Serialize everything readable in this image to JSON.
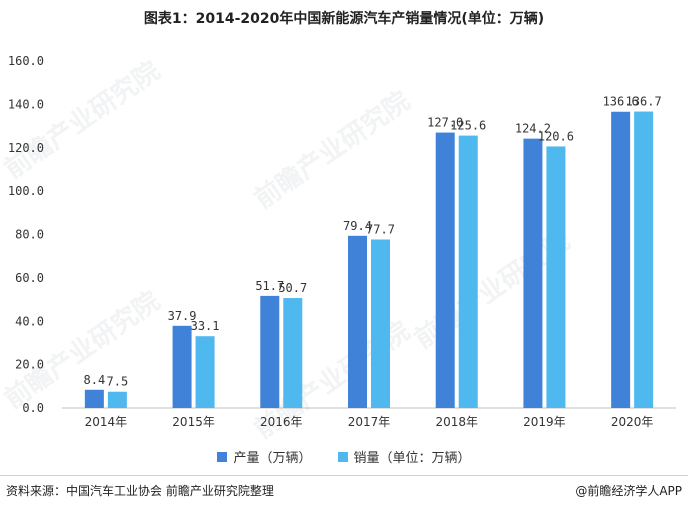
{
  "chart_data": {
    "type": "bar",
    "title": "图表1：2014-2020年中国新能源汽车产销量情况(单位：万辆)",
    "categories": [
      "2014年",
      "2015年",
      "2016年",
      "2017年",
      "2018年",
      "2019年",
      "2020年"
    ],
    "series": [
      {
        "name": "产量（万辆）",
        "values": [
          8.4,
          37.9,
          51.7,
          79.4,
          127.0,
          124.2,
          136.6
        ],
        "labels": [
          "8.4",
          "37.9",
          "51.7",
          "79.4",
          "127.0",
          "124.2",
          "136.6"
        ],
        "color": "#3f82d8"
      },
      {
        "name": "销量（单位：万辆）",
        "values": [
          7.5,
          33.1,
          50.7,
          77.7,
          125.6,
          120.6,
          136.7
        ],
        "labels": [
          "7.5",
          "33.1",
          "50.7",
          "77.7",
          "125.6",
          "120.6",
          "136.7"
        ],
        "color": "#4fb8ee"
      }
    ],
    "yticks": [
      "0.0",
      "20.0",
      "40.0",
      "60.0",
      "80.0",
      "100.0",
      "120.0",
      "140.0",
      "160.0"
    ],
    "ylim": [
      0,
      160
    ],
    "grid": false,
    "legend_position": "bottom"
  },
  "footer": {
    "source": "资料来源：中国汽车工业协会 前瞻产业研究院整理",
    "brand": "@前瞻经济学人APP"
  },
  "watermark": {
    "text": "前瞻产业研究院"
  }
}
